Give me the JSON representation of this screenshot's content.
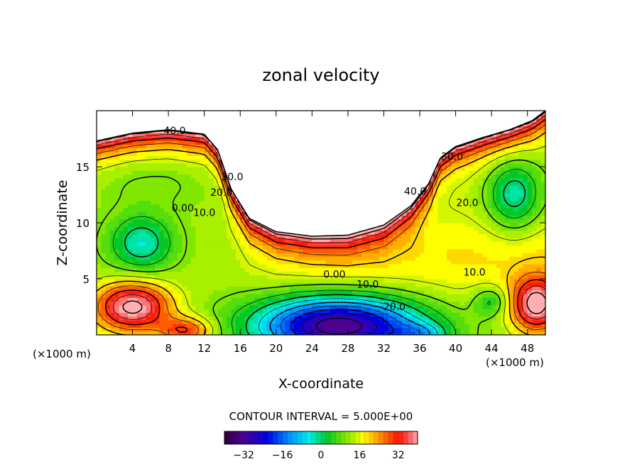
{
  "chart_data": {
    "type": "heatmap",
    "title": "zonal velocity",
    "xlabel": "X-coordinate",
    "ylabel": "Z-coordinate",
    "x_unit_left": "(×1000 m)",
    "x_unit_right": "(×1000 m)",
    "xlim": [
      0,
      50
    ],
    "ylim": [
      0,
      20
    ],
    "x_ticks": [
      "4",
      "8",
      "12",
      "16",
      "20",
      "24",
      "28",
      "32",
      "36",
      "40",
      "44",
      "48"
    ],
    "x_tick_values": [
      4,
      8,
      12,
      16,
      20,
      24,
      28,
      32,
      36,
      40,
      44,
      48
    ],
    "y_ticks": [
      "5",
      "10",
      "15"
    ],
    "y_tick_values": [
      5,
      10,
      15
    ],
    "contour_interval_label": "CONTOUR INTERVAL = 5.000E+00",
    "colorbar": {
      "range": [
        -40,
        40
      ],
      "ticks": [
        "−32",
        "−16",
        "0",
        "16",
        "32"
      ],
      "tick_values": [
        -32,
        -16,
        0,
        16,
        32
      ]
    },
    "contour_labels": [
      {
        "text": "40.0",
        "x": 8.7,
        "z": 17.9
      },
      {
        "text": "30.0",
        "x": 15.1,
        "z": 13.8
      },
      {
        "text": "20.0",
        "x": 13.9,
        "z": 12.4
      },
      {
        "text": "10.0",
        "x": 12.0,
        "z": 10.6
      },
      {
        "text": "0.00",
        "x": 9.6,
        "z": 11.0
      },
      {
        "text": "40.0",
        "x": 35.5,
        "z": 12.5
      },
      {
        "text": "30.0",
        "x": 39.6,
        "z": 15.6
      },
      {
        "text": "20.0",
        "x": 41.3,
        "z": 11.5
      },
      {
        "text": "10.0",
        "x": 42.1,
        "z": 5.3
      },
      {
        "text": "0.00",
        "x": 26.5,
        "z": 5.1
      },
      {
        "text": "-10.0",
        "x": 30.0,
        "z": 4.2
      },
      {
        "text": "-20.0",
        "x": 33.0,
        "z": 2.2
      }
    ],
    "field_features": [
      {
        "x": 27,
        "z": 0.8,
        "sx": 9,
        "sz": 2.6,
        "amp": -46
      },
      {
        "x": 36,
        "z": 0.0,
        "sx": 3.0,
        "sz": 1.0,
        "amp": -12
      },
      {
        "x": 5,
        "z": 8.2,
        "sx": 3.5,
        "sz": 2.5,
        "amp": -16
      },
      {
        "x": 4,
        "z": 2.5,
        "sx": 4.2,
        "sz": 2.2,
        "amp": 30
      },
      {
        "x": 10,
        "z": 0.4,
        "sx": 3,
        "sz": 1.2,
        "amp": 18
      },
      {
        "x": 49,
        "z": 2.7,
        "sx": 2.8,
        "sz": 2.4,
        "amp": 30
      },
      {
        "x": 44,
        "z": 3.0,
        "sx": 2.0,
        "sz": 1.3,
        "amp": -10
      },
      {
        "x": 46.5,
        "z": 12.5,
        "sx": 3.0,
        "sz": 3.2,
        "amp": -16
      },
      {
        "x": 6,
        "z": 14,
        "sx": 8,
        "sz": 2.5,
        "amp": -4
      }
    ],
    "free_surface_z": [
      [
        0,
        17.3
      ],
      [
        4,
        18.0
      ],
      [
        8,
        18.3
      ],
      [
        12,
        17.9
      ],
      [
        13.5,
        16.5
      ],
      [
        15,
        13.0
      ],
      [
        17,
        10.4
      ],
      [
        20,
        9.2
      ],
      [
        24,
        8.8
      ],
      [
        28,
        8.9
      ],
      [
        32,
        9.8
      ],
      [
        35,
        11.5
      ],
      [
        37,
        13.5
      ],
      [
        38.3,
        15.8
      ],
      [
        40,
        16.8
      ],
      [
        43,
        17.6
      ],
      [
        46,
        18.3
      ],
      [
        48.5,
        19.1
      ],
      [
        50,
        20
      ]
    ]
  }
}
